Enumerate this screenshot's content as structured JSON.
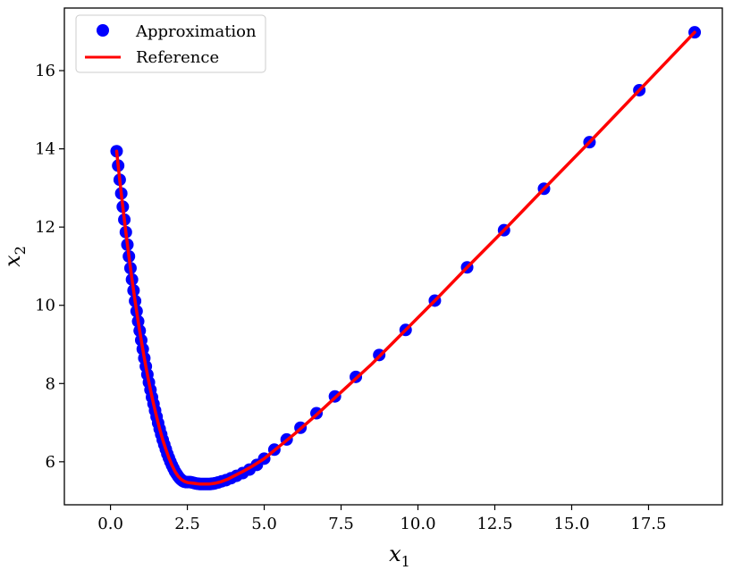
{
  "chart_data": {
    "type": "scatter",
    "xlabel": "x",
    "xlabel_sub": "1",
    "ylabel": "x",
    "ylabel_sub": "2",
    "xlim": [
      -1.5,
      19.9
    ],
    "ylim": [
      4.9,
      17.6
    ],
    "xticks": [
      0.0,
      2.5,
      5.0,
      7.5,
      10.0,
      12.5,
      15.0,
      17.5
    ],
    "xtick_labels": [
      "0.0",
      "2.5",
      "5.0",
      "7.5",
      "10.0",
      "12.5",
      "15.0",
      "17.5"
    ],
    "yticks": [
      6,
      8,
      10,
      12,
      14,
      16
    ],
    "ytick_labels": [
      "6",
      "8",
      "10",
      "12",
      "14",
      "16"
    ],
    "grid": false,
    "legend_position": "top-left",
    "series": [
      {
        "name": "Approximation",
        "kind": "scatter",
        "color": "#0000ff",
        "x": [
          0.2,
          0.25,
          0.3,
          0.35,
          0.4,
          0.45,
          0.5,
          0.55,
          0.6,
          0.65,
          0.7,
          0.75,
          0.8,
          0.85,
          0.9,
          0.95,
          1.0,
          1.05,
          1.1,
          1.15,
          1.2,
          1.25,
          1.3,
          1.35,
          1.4,
          1.45,
          1.5,
          1.55,
          1.6,
          1.65,
          1.7,
          1.75,
          1.8,
          1.85,
          1.9,
          1.95,
          2.0,
          2.05,
          2.1,
          2.15,
          2.2,
          2.25,
          2.3,
          2.35,
          2.4,
          2.45,
          2.5,
          2.55,
          2.6,
          2.65,
          2.7,
          2.75,
          2.8,
          2.85,
          2.9,
          2.95,
          3.0,
          3.05,
          3.1,
          3.15,
          3.2,
          3.25,
          3.3,
          3.35,
          3.4,
          3.5,
          3.62,
          3.76,
          3.92,
          4.1,
          4.3,
          4.52,
          4.76,
          5.0,
          5.33,
          5.73,
          6.18,
          6.7,
          7.3,
          7.98,
          8.74,
          9.6,
          10.55,
          11.6,
          12.8,
          14.1,
          15.58,
          17.2,
          19.0
        ],
        "y": [
          13.94,
          13.57,
          13.21,
          12.86,
          12.52,
          12.19,
          11.87,
          11.55,
          11.25,
          10.95,
          10.66,
          10.38,
          10.11,
          9.85,
          9.59,
          9.35,
          9.11,
          8.88,
          8.65,
          8.44,
          8.23,
          8.03,
          7.84,
          7.65,
          7.48,
          7.31,
          7.15,
          6.99,
          6.84,
          6.7,
          6.56,
          6.44,
          6.32,
          6.2,
          6.1,
          6.0,
          5.91,
          5.83,
          5.75,
          5.69,
          5.63,
          5.58,
          5.54,
          5.51,
          5.49,
          5.48,
          5.48,
          5.48,
          5.48,
          5.47,
          5.46,
          5.45,
          5.44,
          5.44,
          5.43,
          5.43,
          5.43,
          5.43,
          5.43,
          5.43,
          5.43,
          5.43,
          5.44,
          5.44,
          5.45,
          5.47,
          5.5,
          5.53,
          5.58,
          5.64,
          5.71,
          5.8,
          5.92,
          6.08,
          6.31,
          6.57,
          6.87,
          7.24,
          7.67,
          8.17,
          8.73,
          9.37,
          10.12,
          10.97,
          11.92,
          12.98,
          14.17,
          15.5,
          16.98
        ]
      },
      {
        "name": "Reference",
        "kind": "line",
        "color": "#ff0000",
        "x": [
          0.2,
          0.3,
          0.4,
          0.5,
          0.6,
          0.7,
          0.8,
          0.9,
          1.0,
          1.1,
          1.2,
          1.3,
          1.4,
          1.5,
          1.6,
          1.7,
          1.8,
          1.9,
          2.0,
          2.1,
          2.2,
          2.3,
          2.4,
          2.5,
          2.6,
          2.7,
          2.8,
          2.9,
          3.0,
          3.1,
          3.2,
          3.3,
          3.4,
          3.6,
          3.8,
          4.0,
          4.3,
          4.6,
          5.0,
          5.5,
          6.0,
          6.7,
          7.5,
          8.5,
          9.6,
          10.55,
          11.6,
          12.8,
          14.1,
          15.58,
          17.2,
          19.0
        ],
        "y": [
          13.94,
          13.21,
          12.52,
          11.87,
          11.25,
          10.66,
          10.11,
          9.59,
          9.11,
          8.65,
          8.23,
          7.84,
          7.48,
          7.15,
          6.84,
          6.56,
          6.32,
          6.1,
          5.91,
          5.75,
          5.63,
          5.55,
          5.5,
          5.47,
          5.46,
          5.45,
          5.44,
          5.43,
          5.43,
          5.43,
          5.43,
          5.44,
          5.45,
          5.49,
          5.55,
          5.63,
          5.75,
          5.88,
          6.08,
          6.4,
          6.72,
          7.2,
          7.78,
          8.5,
          9.37,
          10.12,
          10.97,
          11.92,
          12.98,
          14.17,
          15.5,
          16.98
        ]
      }
    ]
  },
  "legend": {
    "approximation_label": "Approximation",
    "reference_label": "Reference"
  }
}
